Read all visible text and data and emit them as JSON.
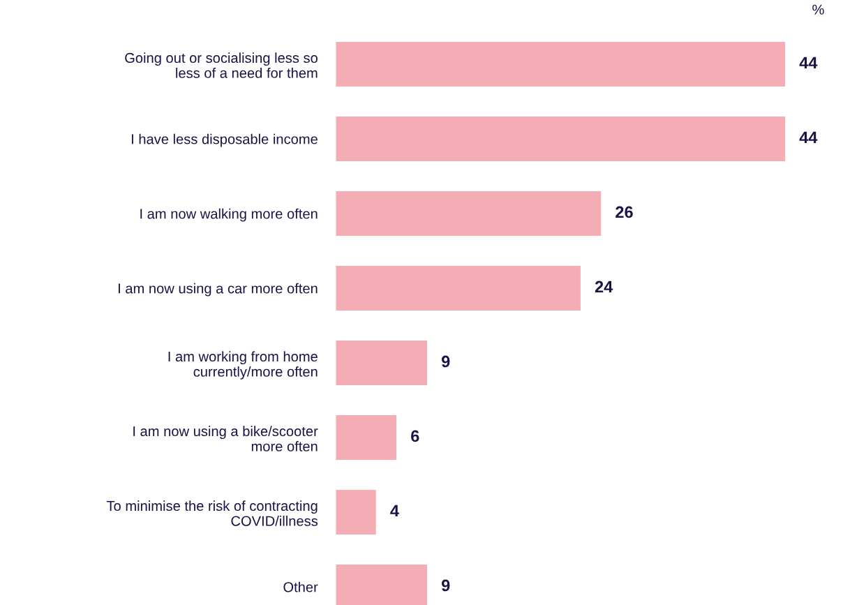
{
  "chart_data": {
    "type": "bar",
    "orientation": "horizontal",
    "categories": [
      "Going out or socialising less so\nless of a need for them",
      "I have less disposable income",
      "I am now walking more often",
      "I am now using a car more often",
      "I am working from home\ncurrently/more often",
      "I am now using a bike/scooter\nmore often",
      "To minimise the risk of contracting\nCOVID/illness",
      "Other"
    ],
    "values": [
      44,
      44,
      26,
      24,
      9,
      6,
      4,
      9
    ],
    "color": "#f4adb5",
    "data_labels": true,
    "annotations": [
      "%"
    ]
  }
}
